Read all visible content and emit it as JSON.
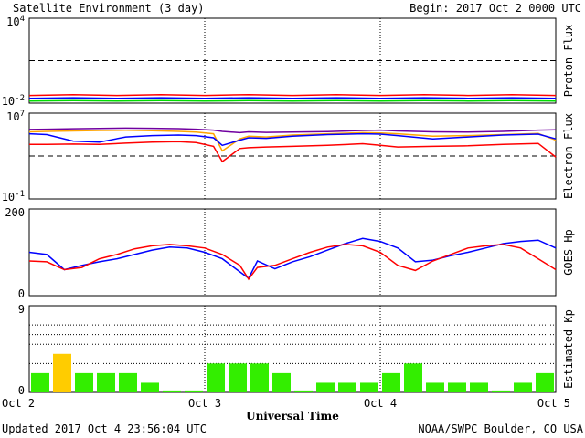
{
  "header": {
    "title": "Satellite Environment (3 day)",
    "begin": "Begin:  2017 Oct 2 0000 UTC"
  },
  "footer": {
    "updated": "Updated 2017 Oct  4 23:56:04 UTC",
    "credit": "NOAA/SWPC Boulder, CO USA",
    "xlabel": "Universal Time"
  },
  "x_ticks": [
    "Oct 2",
    "Oct 3",
    "Oct 4",
    "Oct 5"
  ],
  "colors": {
    "red": "#ff0000",
    "blue": "#0000ff",
    "green": "#00dd00",
    "orange": "#ffa500",
    "purple": "#7000a0",
    "kp_green": "#33ee00",
    "kp_yellow": "#ffcc00"
  },
  "chart_data": [
    {
      "type": "line",
      "ylabel": "Proton Flux",
      "yscale": "log",
      "ylim": [
        0.01,
        10000
      ],
      "ytick_labels": [
        {
          "base": "10",
          "exp": "4"
        },
        {
          "base": "10",
          "exp": "-2"
        }
      ],
      "threshold": 10,
      "x": [
        0,
        0.25,
        0.5,
        0.75,
        1,
        1.25,
        1.5,
        1.75,
        2,
        2.25,
        2.5,
        2.75,
        3
      ],
      "series": [
        {
          "color": "red",
          "values": [
            0.035,
            0.04,
            0.035,
            0.04,
            0.035,
            0.04,
            0.035,
            0.04,
            0.035,
            0.04,
            0.035,
            0.04,
            0.035
          ]
        },
        {
          "color": "blue",
          "values": [
            0.022,
            0.024,
            0.022,
            0.024,
            0.022,
            0.024,
            0.022,
            0.024,
            0.022,
            0.024,
            0.022,
            0.024,
            0.022
          ]
        },
        {
          "color": "green",
          "values": [
            0.014,
            0.015,
            0.014,
            0.015,
            0.014,
            0.015,
            0.014,
            0.015,
            0.014,
            0.015,
            0.014,
            0.015,
            0.014
          ]
        }
      ]
    },
    {
      "type": "line",
      "ylabel": "Electron Flux",
      "yscale": "log",
      "ylim": [
        0.1,
        10000000
      ],
      "ytick_labels": [
        {
          "base": "10",
          "exp": "7"
        },
        {
          "base": "10",
          "exp": "-1"
        }
      ],
      "threshold": 1000,
      "x": [
        0,
        0.1,
        0.25,
        0.4,
        0.55,
        0.7,
        0.85,
        0.95,
        1.05,
        1.1,
        1.2,
        1.25,
        1.35,
        1.5,
        1.7,
        1.9,
        2.0,
        2.1,
        2.3,
        2.5,
        2.7,
        2.9,
        3.0
      ],
      "series": [
        {
          "color": "purple",
          "values": [
            300000,
            320000,
            350000,
            380000,
            400000,
            390000,
            360000,
            320000,
            260000,
            200000,
            150000,
            180000,
            160000,
            170000,
            190000,
            240000,
            260000,
            220000,
            180000,
            170000,
            200000,
            260000,
            280000
          ]
        },
        {
          "color": "orange",
          "values": [
            180000,
            200000,
            220000,
            240000,
            250000,
            230000,
            200000,
            170000,
            120000,
            3000,
            40000,
            70000,
            60000,
            90000,
            120000,
            150000,
            140000,
            120000,
            70000,
            80000,
            100000,
            130000,
            30000
          ]
        },
        {
          "color": "blue",
          "values": [
            120000,
            100000,
            25000,
            20000,
            60000,
            80000,
            90000,
            80000,
            50000,
            10000,
            30000,
            50000,
            45000,
            70000,
            100000,
            120000,
            110000,
            80000,
            40000,
            60000,
            90000,
            110000,
            40000
          ]
        },
        {
          "color": "red",
          "values": [
            12000,
            12000,
            13000,
            12000,
            16000,
            20000,
            22000,
            18000,
            8000,
            300,
            5000,
            6000,
            7000,
            8000,
            10000,
            14000,
            10000,
            7000,
            8000,
            9000,
            12000,
            15000,
            800
          ]
        }
      ]
    },
    {
      "type": "line",
      "ylabel": "GOES Hp",
      "yscale": "linear",
      "ylim": [
        0,
        200
      ],
      "ytick_labels": [
        {
          "base": "200",
          "exp": ""
        },
        {
          "base": "0",
          "exp": ""
        }
      ],
      "x": [
        0,
        0.1,
        0.2,
        0.3,
        0.4,
        0.5,
        0.6,
        0.7,
        0.8,
        0.9,
        1.0,
        1.1,
        1.2,
        1.25,
        1.3,
        1.4,
        1.5,
        1.6,
        1.7,
        1.8,
        1.9,
        2.0,
        2.1,
        2.2,
        2.3,
        2.4,
        2.5,
        2.6,
        2.7,
        2.8,
        2.9,
        3.0
      ],
      "series": [
        {
          "color": "blue",
          "values": [
            100,
            95,
            60,
            70,
            78,
            85,
            95,
            105,
            112,
            110,
            100,
            85,
            55,
            40,
            80,
            62,
            78,
            90,
            105,
            120,
            132,
            125,
            110,
            78,
            82,
            92,
            100,
            110,
            120,
            125,
            128,
            110
          ]
        },
        {
          "color": "red",
          "values": [
            80,
            78,
            60,
            65,
            85,
            95,
            108,
            115,
            118,
            115,
            110,
            95,
            70,
            38,
            65,
            70,
            85,
            100,
            112,
            118,
            115,
            100,
            70,
            58,
            80,
            95,
            110,
            115,
            118,
            110,
            85,
            60
          ]
        }
      ]
    },
    {
      "type": "bar",
      "ylabel": "Estimated Kp",
      "ylim": [
        0,
        9
      ],
      "ytick_labels": [
        {
          "base": "9",
          "exp": ""
        },
        {
          "base": "0",
          "exp": ""
        }
      ],
      "values": [
        2,
        4,
        2,
        2,
        2,
        1,
        0,
        0,
        3,
        3,
        3,
        2,
        0,
        1,
        1,
        1,
        2,
        3,
        1,
        1,
        1,
        0,
        1,
        2
      ],
      "bar_colors": [
        "kp_green",
        "kp_yellow",
        "kp_green",
        "kp_green",
        "kp_green",
        "kp_green",
        "kp_green",
        "kp_green",
        "kp_green",
        "kp_green",
        "kp_green",
        "kp_green",
        "kp_green",
        "kp_green",
        "kp_green",
        "kp_green",
        "kp_green",
        "kp_green",
        "kp_green",
        "kp_green",
        "kp_green",
        "kp_green",
        "kp_green",
        "kp_green"
      ]
    }
  ]
}
